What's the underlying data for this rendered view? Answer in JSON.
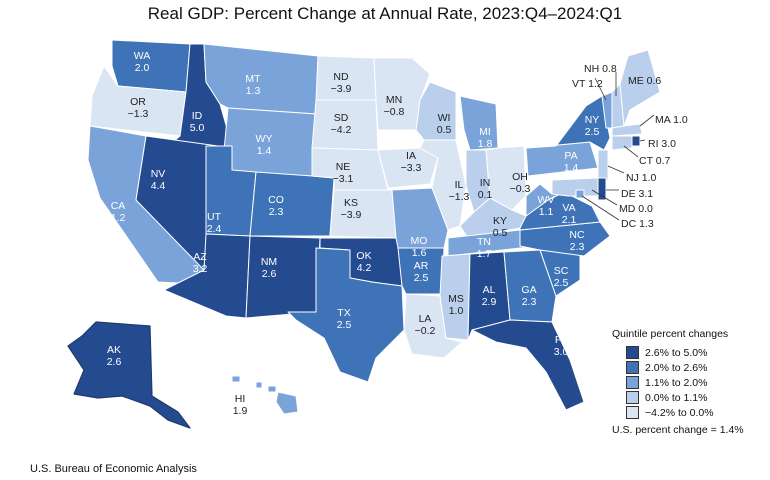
{
  "title": "Real GDP: Percent Change at Annual Rate, 2023:Q4–2024:Q1",
  "colors": {
    "q1": "#244a8f",
    "q2": "#3e73b7",
    "q3": "#79a3d9",
    "q4": "#b9cfec",
    "q5": "#dae5f4",
    "border": "#ffffff",
    "alaska_border": "#1e3c6e"
  },
  "states": [
    {
      "abbr": "WA",
      "value": "2.0",
      "quintile": "q2"
    },
    {
      "abbr": "OR",
      "value": "−1.3",
      "quintile": "q5"
    },
    {
      "abbr": "ID",
      "value": "5.0",
      "quintile": "q1"
    },
    {
      "abbr": "MT",
      "value": "1.3",
      "quintile": "q3"
    },
    {
      "abbr": "WY",
      "value": "1.4",
      "quintile": "q3"
    },
    {
      "abbr": "CA",
      "value": "1.2",
      "quintile": "q3"
    },
    {
      "abbr": "NV",
      "value": "4.4",
      "quintile": "q1"
    },
    {
      "abbr": "UT",
      "value": "2.4",
      "quintile": "q2"
    },
    {
      "abbr": "CO",
      "value": "2.3",
      "quintile": "q2"
    },
    {
      "abbr": "AZ",
      "value": "3.2",
      "quintile": "q1"
    },
    {
      "abbr": "NM",
      "value": "2.6",
      "quintile": "q1"
    },
    {
      "abbr": "ND",
      "value": "−3.9",
      "quintile": "q5"
    },
    {
      "abbr": "SD",
      "value": "−4.2",
      "quintile": "q5"
    },
    {
      "abbr": "NE",
      "value": "−3.1",
      "quintile": "q5"
    },
    {
      "abbr": "KS",
      "value": "−3.9",
      "quintile": "q5"
    },
    {
      "abbr": "OK",
      "value": "4.2",
      "quintile": "q1"
    },
    {
      "abbr": "TX",
      "value": "2.5",
      "quintile": "q2"
    },
    {
      "abbr": "MN",
      "value": "−0.8",
      "quintile": "q5"
    },
    {
      "abbr": "IA",
      "value": "−3.3",
      "quintile": "q5"
    },
    {
      "abbr": "MO",
      "value": "1.6",
      "quintile": "q3"
    },
    {
      "abbr": "AR",
      "value": "2.5",
      "quintile": "q2"
    },
    {
      "abbr": "LA",
      "value": "−0.2",
      "quintile": "q5"
    },
    {
      "abbr": "WI",
      "value": "0.5",
      "quintile": "q4"
    },
    {
      "abbr": "IL",
      "value": "−1.3",
      "quintile": "q5"
    },
    {
      "abbr": "MI",
      "value": "1.8",
      "quintile": "q3"
    },
    {
      "abbr": "IN",
      "value": "0.1",
      "quintile": "q4"
    },
    {
      "abbr": "OH",
      "value": "−0.3",
      "quintile": "q5"
    },
    {
      "abbr": "KY",
      "value": "0.5",
      "quintile": "q4"
    },
    {
      "abbr": "TN",
      "value": "1.7",
      "quintile": "q3"
    },
    {
      "abbr": "MS",
      "value": "1.0",
      "quintile": "q4"
    },
    {
      "abbr": "AL",
      "value": "2.9",
      "quintile": "q1"
    },
    {
      "abbr": "GA",
      "value": "2.3",
      "quintile": "q2"
    },
    {
      "abbr": "FL",
      "value": "3.0",
      "quintile": "q1"
    },
    {
      "abbr": "SC",
      "value": "2.5",
      "quintile": "q2"
    },
    {
      "abbr": "NC",
      "value": "2.3",
      "quintile": "q2"
    },
    {
      "abbr": "VA",
      "value": "2.1",
      "quintile": "q2"
    },
    {
      "abbr": "WV",
      "value": "1.1",
      "quintile": "q3"
    },
    {
      "abbr": "PA",
      "value": "1.4",
      "quintile": "q3"
    },
    {
      "abbr": "NY",
      "value": "2.5",
      "quintile": "q2"
    },
    {
      "abbr": "VT",
      "value": "1.2",
      "quintile": "q3"
    },
    {
      "abbr": "NH",
      "value": "0.8",
      "quintile": "q4"
    },
    {
      "abbr": "ME",
      "value": "0.6",
      "quintile": "q4"
    },
    {
      "abbr": "MA",
      "value": "1.0",
      "quintile": "q4"
    },
    {
      "abbr": "RI",
      "value": "3.0",
      "quintile": "q1"
    },
    {
      "abbr": "CT",
      "value": "0.7",
      "quintile": "q4"
    },
    {
      "abbr": "NJ",
      "value": "1.0",
      "quintile": "q4"
    },
    {
      "abbr": "DE",
      "value": "3.1",
      "quintile": "q1"
    },
    {
      "abbr": "MD",
      "value": "0.0",
      "quintile": "q4"
    },
    {
      "abbr": "DC",
      "value": "1.3",
      "quintile": "q3"
    },
    {
      "abbr": "AK",
      "value": "2.6",
      "quintile": "q1"
    },
    {
      "abbr": "HI",
      "value": "1.9",
      "quintile": "q3"
    }
  ],
  "legend": {
    "title": "Quintile percent changes",
    "items": [
      {
        "label": "2.6% to 5.0%",
        "quintile": "q1"
      },
      {
        "label": "2.0% to 2.6%",
        "quintile": "q2"
      },
      {
        "label": "1.1% to 2.0%",
        "quintile": "q3"
      },
      {
        "label": "0.0% to 1.1%",
        "quintile": "q4"
      },
      {
        "label": "−4.2% to 0.0%",
        "quintile": "q5"
      }
    ],
    "us_change": "U.S. percent change = 1.4%"
  },
  "source": "U.S. Bureau of Economic Analysis"
}
